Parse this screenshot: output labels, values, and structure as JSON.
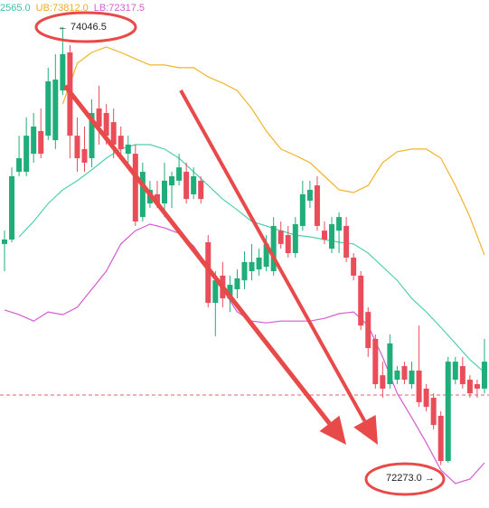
{
  "chart_data": {
    "type": "candlestick",
    "legend": [
      "2565.0",
      "UB:73812.0",
      "LB:72317.5"
    ],
    "legend_colors": [
      "#3cbfae",
      "#f0a92a",
      "#d65fd0"
    ],
    "ylim": [
      72100,
      74155
    ],
    "up_color": "#1fae7a",
    "down_color": "#ea4d5a",
    "open": [
      73168,
      73186,
      73460,
      73460,
      73533,
      73625,
      73606,
      73588,
      73789,
      73943,
      73606,
      73552,
      73515,
      73716,
      73698,
      73661,
      73606,
      73533,
      73533,
      73277,
      73332,
      73369,
      73332,
      73405,
      73424,
      73460,
      73369,
      73424,
      73175,
      72930,
      73040,
      72948,
      72985,
      73021,
      73058,
      73065,
      73076,
      73058,
      73222,
      73204,
      73131,
      73241,
      73343,
      73405,
      73222,
      73149,
      73222,
      73241,
      73113,
      73040,
      72893,
      72784,
      72637,
      72601,
      72619,
      72674,
      72601,
      72656,
      72583,
      72546,
      72473,
      72290,
      72619,
      72674,
      72619,
      72601,
      72583
    ],
    "high": [
      73222,
      73478,
      73606,
      73680,
      73698,
      73716,
      73881,
      73936,
      74046.5,
      73972,
      73680,
      73643,
      73753,
      73808,
      73734,
      73716,
      73643,
      73606,
      73570,
      73497,
      73424,
      73424,
      73497,
      73460,
      73533,
      73497,
      73478,
      73442,
      73204,
      73058,
      73095,
      73040,
      73065,
      73138,
      73168,
      73149,
      73204,
      73277,
      73259,
      73241,
      73277,
      73424,
      73424,
      73442,
      73259,
      73277,
      73296,
      73277,
      73131,
      73058,
      72912,
      72802,
      72692,
      72802,
      72674,
      72692,
      72692,
      72838,
      72601,
      72564,
      72491,
      72711,
      72711,
      72711,
      72637,
      72619,
      72784
    ],
    "low": [
      73058,
      73175,
      73442,
      73442,
      73497,
      73515,
      73588,
      73552,
      73771,
      73515,
      73460,
      73460,
      73478,
      73570,
      73570,
      73515,
      73515,
      73497,
      73241,
      73259,
      73314,
      73314,
      73277,
      73314,
      73405,
      73332,
      73350,
      73332,
      72912,
      72795,
      72912,
      72893,
      72948,
      72985,
      73021,
      73040,
      73058,
      73040,
      73149,
      73113,
      73113,
      73222,
      73314,
      73222,
      73168,
      73131,
      73131,
      73095,
      73021,
      72820,
      72711,
      72583,
      72546,
      72583,
      72601,
      72601,
      72583,
      72509,
      72491,
      72418,
      72273,
      72283,
      72601,
      72583,
      72546,
      72546,
      72564
    ],
    "close": [
      73186,
      73442,
      73515,
      73606,
      73643,
      73533,
      73826,
      73833,
      73936,
      73606,
      73515,
      73497,
      73698,
      73643,
      73606,
      73570,
      73552,
      73570,
      73259,
      73460,
      73387,
      73332,
      73424,
      73442,
      73478,
      73350,
      73442,
      73350,
      72930,
      73021,
      72948,
      73003,
      73029,
      73095,
      73095,
      73113,
      73168,
      73241,
      73168,
      73131,
      73248,
      73369,
      73387,
      73241,
      73186,
      73248,
      73277,
      73113,
      73040,
      72838,
      72747,
      72601,
      72583,
      72766,
      72656,
      72619,
      72656,
      72528,
      72509,
      72436,
      72290,
      72692,
      72692,
      72601,
      72564,
      72583,
      72692
    ],
    "bands": [
      {
        "color": "#f0b429",
        "x": [
          8,
          10,
          12,
          14,
          16,
          18,
          20,
          22,
          24,
          26,
          28,
          30,
          32,
          34,
          36,
          38,
          40,
          42,
          44,
          46,
          48,
          50,
          52,
          54,
          56,
          58,
          60,
          62,
          64,
          66
        ],
        "values": [
          73734,
          73899,
          73943,
          73965,
          73943,
          73917,
          73892,
          73892,
          73881,
          73881,
          73844,
          73819,
          73789,
          73716,
          73625,
          73552,
          73526,
          73497,
          73442,
          73387,
          73376,
          73405,
          73497,
          73541,
          73552,
          73552,
          73515,
          73405,
          73277,
          73123
        ]
      },
      {
        "color": "#4fcfae",
        "x": [
          2,
          4,
          6,
          8,
          10,
          12,
          14,
          16,
          18,
          20,
          22,
          24,
          26,
          28,
          30,
          32,
          34,
          36,
          38,
          40,
          42,
          44,
          46,
          48,
          50,
          52,
          54,
          56,
          58,
          60,
          62,
          64,
          66
        ],
        "values": [
          73197,
          73259,
          73332,
          73387,
          73424,
          73468,
          73515,
          73552,
          73570,
          73570,
          73552,
          73515,
          73460,
          73405,
          73350,
          73306,
          73259,
          73241,
          73222,
          73204,
          73197,
          73186,
          73175,
          73168,
          73131,
          73076,
          73021,
          72948,
          72893,
          72831,
          72766,
          72700,
          72649
        ]
      },
      {
        "color": "#d45bd0",
        "x": [
          0,
          2,
          4,
          6,
          8,
          10,
          12,
          14,
          16,
          18,
          20,
          22,
          24,
          26,
          28,
          30,
          32,
          34,
          36,
          38,
          40,
          42,
          44,
          46,
          48,
          50,
          52,
          54,
          56,
          58,
          60,
          62,
          64,
          66
        ],
        "values": [
          72901,
          72882,
          72856,
          72893,
          72882,
          72912,
          72985,
          73058,
          73168,
          73222,
          73248,
          73233,
          73211,
          73160,
          73076,
          72985,
          72893,
          72856,
          72849,
          72856,
          72856,
          72856,
          72867,
          72886,
          72893,
          72838,
          72711,
          72564,
          72466,
          72364,
          72254,
          72199,
          72217,
          72283
        ]
      }
    ],
    "price_line": 72557,
    "high_label": "← 74046.5",
    "low_label": "72273.0 →"
  }
}
